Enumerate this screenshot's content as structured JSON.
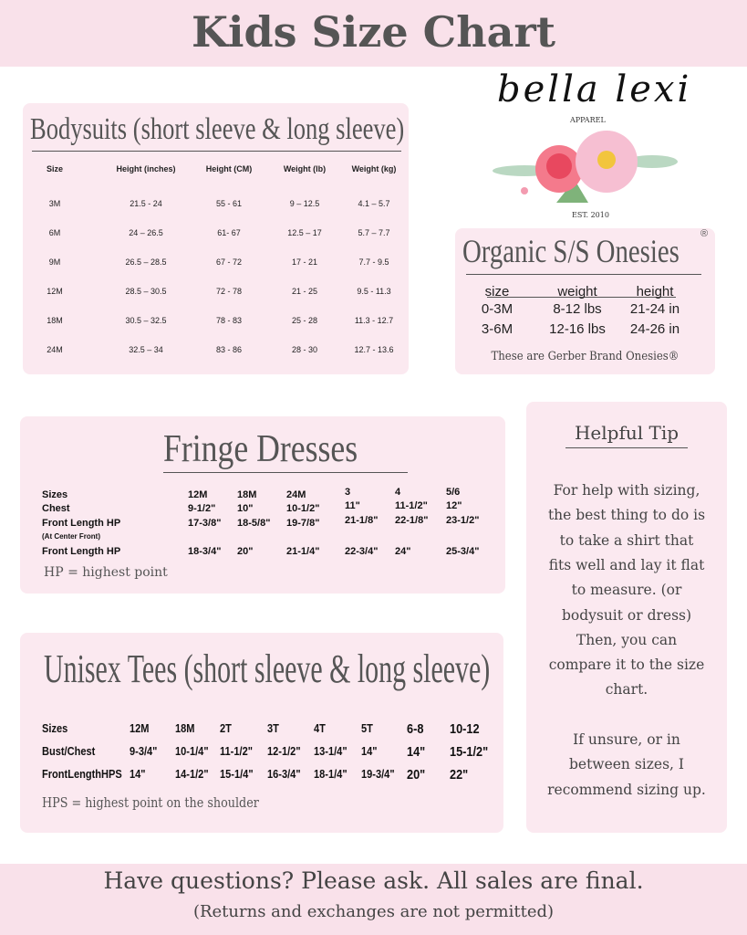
{
  "header": {
    "title": "Kids Size Chart"
  },
  "logo": {
    "name": "bella lexi",
    "sub": "APPAREL",
    "est": "EST. 2010"
  },
  "bodysuits": {
    "title": "Bodysuits (short sleeve & long sleeve)",
    "columns": [
      "Size",
      "Height (inches)",
      "Height (CM)",
      "Weight (lb)",
      "Weight (kg)"
    ],
    "rows": [
      [
        "3M",
        "21.5 - 24",
        "55 - 61",
        "9 – 12.5",
        "4.1 – 5.7"
      ],
      [
        "6M",
        "24 – 26.5",
        "61- 67",
        "12.5 – 17",
        "5.7 – 7.7"
      ],
      [
        "9M",
        "26.5 – 28.5",
        "67 - 72",
        "17 - 21",
        "7.7 - 9.5"
      ],
      [
        "12M",
        "28.5 – 30.5",
        "72 - 78",
        "21 - 25",
        "9.5 - 11.3"
      ],
      [
        "18M",
        "30.5 – 32.5",
        "78 - 83",
        "25 - 28",
        "11.3 - 12.7"
      ],
      [
        "24M",
        "32.5 – 34",
        "83 - 86",
        "28 - 30",
        "12.7 - 13.6"
      ]
    ]
  },
  "organic": {
    "title": "Organic S/S Onesies",
    "registered": "®",
    "columns": [
      "size",
      "weight",
      "height"
    ],
    "rows": [
      [
        "0-3M",
        "8-12 lbs",
        "21-24 in"
      ],
      [
        "3-6M",
        "12-16 lbs",
        "24-26 in"
      ]
    ],
    "footer": "These are Gerber Brand Onesies®"
  },
  "fringe": {
    "title": "Fringe Dresses",
    "rows": [
      [
        "Sizes",
        "12M",
        "18M",
        "24M",
        "3",
        "4",
        "5/6"
      ],
      [
        "Chest",
        "9-1/2\"",
        "10\"",
        "10-1/2\"",
        "11\"",
        "11-1/2\"",
        "12\""
      ],
      [
        "Front Length HP",
        "17-3/8\"",
        "18-5/8\"",
        "19-7/8\"",
        "21-1/8\"",
        "22-1/8\"",
        "23-1/2\""
      ],
      [
        "(At Center Front)",
        "",
        "",
        "",
        "",
        "",
        ""
      ],
      [
        "Front Length HP",
        "18-3/4\"",
        "20\"",
        "21-1/4\"",
        "22-3/4\"",
        "24\"",
        "25-3/4\""
      ]
    ],
    "note": "HP = highest point"
  },
  "tees": {
    "title": "Unisex Tees (short sleeve & long sleeve)",
    "rows": [
      [
        "Sizes",
        "12M",
        "18M",
        "2T",
        "3T",
        "4T",
        "5T",
        "6-8",
        "10-12"
      ],
      [
        "Bust/Chest",
        "9-3/4\"",
        "10-1/4\"",
        "11-1/2\"",
        "12-1/2\"",
        "13-1/4\"",
        "14\"",
        "14\"",
        "15-1/2\""
      ],
      [
        "FrontLengthHPS",
        "14\"",
        "14-1/2\"",
        "15-1/4\"",
        "16-3/4\"",
        "18-1/4\"",
        "19-3/4\"",
        "20\"",
        "22\""
      ]
    ],
    "note": "HPS = highest point on the shoulder"
  },
  "tip": {
    "title": "Helpful Tip",
    "lines": [
      "For help with sizing,",
      "the best thing to do is",
      "to take a shirt that",
      "fits well and lay it flat",
      "to measure. (or",
      "bodysuit or dress)",
      "Then, you can",
      "compare it to the size",
      "chart.",
      "",
      "If unsure, or in",
      "between sizes, I",
      "recommend sizing up."
    ]
  },
  "footer": {
    "line1": "Have questions? Please ask. All sales are final.",
    "line2": "(Returns and exchanges are not permitted)"
  }
}
